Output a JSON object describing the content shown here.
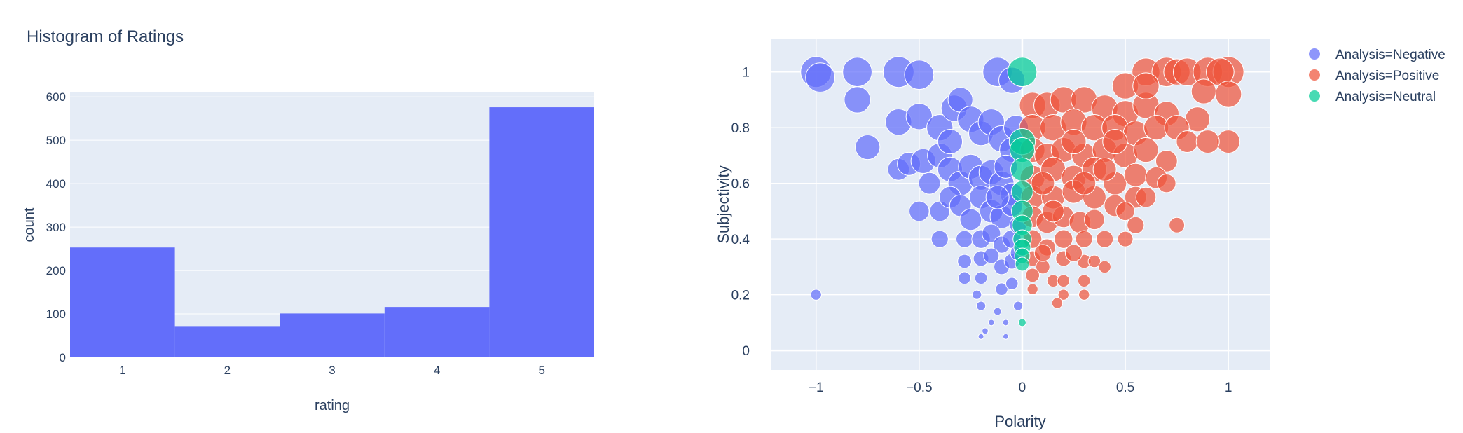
{
  "chart_data": [
    {
      "type": "bar",
      "title": "Histogram of Ratings",
      "xlabel": "rating",
      "ylabel": "count",
      "categories": [
        "1",
        "2",
        "3",
        "4",
        "5"
      ],
      "values": [
        253,
        72,
        101,
        116,
        576
      ],
      "ylim": [
        0,
        610
      ],
      "yticks": [
        0,
        100,
        200,
        300,
        400,
        500,
        600
      ],
      "color": "#636efa",
      "grid": true
    },
    {
      "type": "scatter",
      "title": "",
      "xlabel": "Polarity",
      "ylabel": "Subjectivity",
      "xlim": [
        -1.22,
        1.2
      ],
      "ylim": [
        -0.07,
        1.12
      ],
      "xticks": [
        -1,
        -0.5,
        0,
        0.5,
        1
      ],
      "xtick_labels": [
        "−1",
        "−0.5",
        "0",
        "0.5",
        "1"
      ],
      "yticks": [
        0,
        0.2,
        0.4,
        0.6,
        0.8,
        1
      ],
      "yticks_labels": [
        "0",
        "0.2",
        "0.4",
        "0.6",
        "0.8",
        "1"
      ],
      "legend_position": "right",
      "grid": true,
      "series": [
        {
          "name": "Analysis=Negative",
          "legend_label": "Analysis=Negative",
          "color": "#636efa",
          "points": [
            [
              -1,
              1,
              1.0
            ],
            [
              -0.98,
              0.98,
              0.95
            ],
            [
              -0.8,
              1,
              0.95
            ],
            [
              -0.8,
              0.9,
              0.85
            ],
            [
              -0.6,
              1,
              1.0
            ],
            [
              -0.5,
              0.99,
              0.95
            ],
            [
              -0.12,
              1,
              0.95
            ],
            [
              -0.05,
              0.97,
              0.85
            ],
            [
              -0.75,
              0.73,
              0.8
            ],
            [
              -0.6,
              0.82,
              0.85
            ],
            [
              -0.5,
              0.84,
              0.85
            ],
            [
              -0.4,
              0.8,
              0.85
            ],
            [
              -0.33,
              0.87,
              0.85
            ],
            [
              -0.3,
              0.9,
              0.8
            ],
            [
              -0.25,
              0.83,
              0.85
            ],
            [
              -0.2,
              0.78,
              0.8
            ],
            [
              -0.15,
              0.82,
              0.85
            ],
            [
              -0.1,
              0.76,
              0.85
            ],
            [
              -0.05,
              0.72,
              0.8
            ],
            [
              -0.6,
              0.65,
              0.7
            ],
            [
              -0.55,
              0.67,
              0.75
            ],
            [
              -0.48,
              0.68,
              0.8
            ],
            [
              -0.4,
              0.7,
              0.8
            ],
            [
              -0.35,
              0.65,
              0.8
            ],
            [
              -0.3,
              0.6,
              0.8
            ],
            [
              -0.25,
              0.66,
              0.8
            ],
            [
              -0.2,
              0.62,
              0.8
            ],
            [
              -0.15,
              0.64,
              0.8
            ],
            [
              -0.1,
              0.6,
              0.8
            ],
            [
              -0.05,
              0.56,
              0.75
            ],
            [
              -0.5,
              0.5,
              0.65
            ],
            [
              -0.4,
              0.5,
              0.65
            ],
            [
              -0.35,
              0.55,
              0.7
            ],
            [
              -0.3,
              0.52,
              0.7
            ],
            [
              -0.25,
              0.47,
              0.7
            ],
            [
              -0.2,
              0.55,
              0.75
            ],
            [
              -0.15,
              0.5,
              0.75
            ],
            [
              -0.1,
              0.48,
              0.75
            ],
            [
              -0.05,
              0.52,
              0.7
            ],
            [
              -0.4,
              0.4,
              0.55
            ],
            [
              -0.28,
              0.4,
              0.55
            ],
            [
              -0.2,
              0.4,
              0.6
            ],
            [
              -0.15,
              0.42,
              0.6
            ],
            [
              -0.1,
              0.38,
              0.55
            ],
            [
              -0.05,
              0.4,
              0.6
            ],
            [
              -0.28,
              0.32,
              0.45
            ],
            [
              -0.2,
              0.33,
              0.5
            ],
            [
              -0.15,
              0.34,
              0.5
            ],
            [
              -0.1,
              0.3,
              0.5
            ],
            [
              -0.05,
              0.32,
              0.5
            ],
            [
              -0.28,
              0.26,
              0.4
            ],
            [
              -0.2,
              0.26,
              0.4
            ],
            [
              -0.1,
              0.22,
              0.4
            ],
            [
              -0.05,
              0.24,
              0.4
            ],
            [
              -0.22,
              0.2,
              0.3
            ],
            [
              -0.2,
              0.16,
              0.3
            ],
            [
              -0.12,
              0.14,
              0.25
            ],
            [
              -0.02,
              0.16,
              0.3
            ],
            [
              -1,
              0.2,
              0.35
            ],
            [
              -0.15,
              0.1,
              0.2
            ],
            [
              -0.08,
              0.1,
              0.2
            ],
            [
              -0.18,
              0.07,
              0.2
            ],
            [
              -0.2,
              0.05,
              0.15
            ],
            [
              -0.08,
              0.05,
              0.15
            ],
            [
              -0.03,
              0.8,
              0.8
            ],
            [
              -0.08,
              0.66,
              0.75
            ],
            [
              -0.12,
              0.55,
              0.75
            ],
            [
              -0.35,
              0.75,
              0.8
            ],
            [
              -0.45,
              0.6,
              0.7
            ],
            [
              -0.02,
              0.45,
              0.55
            ],
            [
              -0.02,
              0.35,
              0.5
            ]
          ]
        },
        {
          "name": "Analysis=Positive",
          "legend_label": "Analysis=Positive",
          "color": "#ef553b",
          "points": [
            [
              0.6,
              1,
              0.9
            ],
            [
              0.7,
              1,
              0.95
            ],
            [
              0.75,
              1,
              0.85
            ],
            [
              0.8,
              1,
              0.9
            ],
            [
              0.9,
              1,
              0.95
            ],
            [
              1,
              1,
              1.0
            ],
            [
              0.96,
              1,
              0.9
            ],
            [
              0.5,
              0.95,
              0.85
            ],
            [
              1,
              0.92,
              0.85
            ],
            [
              0.88,
              0.93,
              0.8
            ],
            [
              0.05,
              0.88,
              0.85
            ],
            [
              0.12,
              0.88,
              0.85
            ],
            [
              0.2,
              0.9,
              0.85
            ],
            [
              0.3,
              0.9,
              0.85
            ],
            [
              0.4,
              0.87,
              0.85
            ],
            [
              0.5,
              0.85,
              0.85
            ],
            [
              0.6,
              0.88,
              0.85
            ],
            [
              0.7,
              0.85,
              0.8
            ],
            [
              0.85,
              0.83,
              0.8
            ],
            [
              0.05,
              0.8,
              0.85
            ],
            [
              0.15,
              0.8,
              0.85
            ],
            [
              0.25,
              0.82,
              0.85
            ],
            [
              0.35,
              0.8,
              0.85
            ],
            [
              0.45,
              0.8,
              0.85
            ],
            [
              0.55,
              0.78,
              0.8
            ],
            [
              0.65,
              0.8,
              0.8
            ],
            [
              0.75,
              0.8,
              0.8
            ],
            [
              0.8,
              0.75,
              0.7
            ],
            [
              1,
              0.75,
              0.75
            ],
            [
              0.9,
              0.75,
              0.75
            ],
            [
              0.05,
              0.72,
              0.8
            ],
            [
              0.12,
              0.7,
              0.8
            ],
            [
              0.2,
              0.72,
              0.8
            ],
            [
              0.3,
              0.7,
              0.8
            ],
            [
              0.4,
              0.72,
              0.8
            ],
            [
              0.5,
              0.7,
              0.8
            ],
            [
              0.6,
              0.72,
              0.8
            ],
            [
              0.7,
              0.68,
              0.7
            ],
            [
              0.05,
              0.62,
              0.8
            ],
            [
              0.15,
              0.65,
              0.8
            ],
            [
              0.25,
              0.62,
              0.8
            ],
            [
              0.35,
              0.65,
              0.8
            ],
            [
              0.45,
              0.6,
              0.75
            ],
            [
              0.55,
              0.63,
              0.75
            ],
            [
              0.65,
              0.62,
              0.7
            ],
            [
              0.7,
              0.6,
              0.6
            ],
            [
              0.05,
              0.55,
              0.75
            ],
            [
              0.15,
              0.55,
              0.75
            ],
            [
              0.25,
              0.57,
              0.75
            ],
            [
              0.35,
              0.55,
              0.75
            ],
            [
              0.45,
              0.52,
              0.7
            ],
            [
              0.55,
              0.55,
              0.7
            ],
            [
              0.5,
              0.5,
              0.6
            ],
            [
              0.05,
              0.48,
              0.7
            ],
            [
              0.12,
              0.46,
              0.7
            ],
            [
              0.2,
              0.48,
              0.7
            ],
            [
              0.28,
              0.46,
              0.7
            ],
            [
              0.35,
              0.47,
              0.65
            ],
            [
              0.55,
              0.45,
              0.55
            ],
            [
              0.75,
              0.45,
              0.5
            ],
            [
              0.05,
              0.4,
              0.6
            ],
            [
              0.12,
              0.37,
              0.55
            ],
            [
              0.2,
              0.4,
              0.6
            ],
            [
              0.3,
              0.4,
              0.55
            ],
            [
              0.4,
              0.4,
              0.55
            ],
            [
              0.5,
              0.4,
              0.5
            ],
            [
              0.05,
              0.33,
              0.5
            ],
            [
              0.1,
              0.3,
              0.45
            ],
            [
              0.2,
              0.33,
              0.5
            ],
            [
              0.3,
              0.32,
              0.45
            ],
            [
              0.35,
              0.32,
              0.4
            ],
            [
              0.4,
              0.3,
              0.4
            ],
            [
              0.05,
              0.27,
              0.45
            ],
            [
              0.15,
              0.25,
              0.4
            ],
            [
              0.2,
              0.25,
              0.4
            ],
            [
              0.3,
              0.25,
              0.4
            ],
            [
              0.05,
              0.22,
              0.35
            ],
            [
              0.2,
              0.2,
              0.35
            ],
            [
              0.3,
              0.2,
              0.35
            ],
            [
              0.17,
              0.17,
              0.35
            ],
            [
              0.1,
              0.6,
              0.75
            ],
            [
              0.3,
              0.6,
              0.75
            ],
            [
              0.4,
              0.65,
              0.75
            ],
            [
              0.6,
              0.55,
              0.65
            ],
            [
              0.25,
              0.75,
              0.8
            ],
            [
              0.45,
              0.75,
              0.8
            ],
            [
              0.15,
              0.5,
              0.7
            ],
            [
              0.1,
              0.35,
              0.55
            ],
            [
              0.25,
              0.35,
              0.55
            ],
            [
              0.6,
              0.95,
              0.85
            ]
          ]
        },
        {
          "name": "Analysis=Neutral",
          "legend_label": "Analysis=Neutral",
          "color": "#00cc96",
          "points": [
            [
              0,
              1,
              0.95
            ],
            [
              0,
              0.75,
              0.85
            ],
            [
              0,
              0.72,
              0.8
            ],
            [
              0,
              0.65,
              0.75
            ],
            [
              0,
              0.57,
              0.7
            ],
            [
              0,
              0.5,
              0.7
            ],
            [
              0,
              0.45,
              0.65
            ],
            [
              0,
              0.4,
              0.6
            ],
            [
              0,
              0.37,
              0.55
            ],
            [
              0,
              0.34,
              0.5
            ],
            [
              0,
              0.31,
              0.45
            ],
            [
              0,
              0.1,
              0.25
            ]
          ]
        }
      ]
    }
  ]
}
